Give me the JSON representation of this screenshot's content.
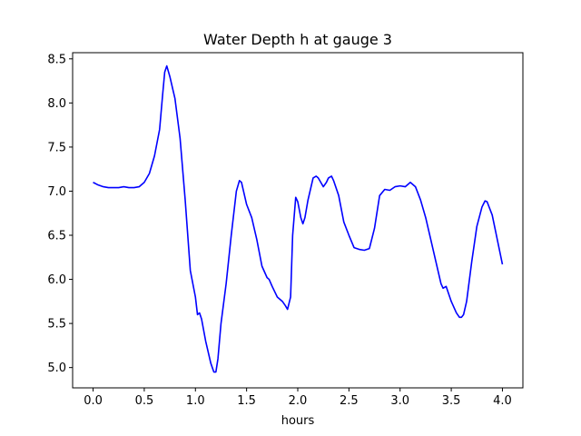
{
  "chart_data": {
    "type": "line",
    "title": "Water Depth h at gauge 3",
    "xlabel": "hours",
    "ylabel": "",
    "xlim": [
      -0.2,
      4.2
    ],
    "ylim": [
      4.77,
      8.57
    ],
    "xticks": [
      0.0,
      0.5,
      1.0,
      1.5,
      2.0,
      2.5,
      3.0,
      3.5,
      4.0
    ],
    "xtick_labels": [
      "0.0",
      "0.5",
      "1.0",
      "1.5",
      "2.0",
      "2.5",
      "3.0",
      "3.5",
      "4.0"
    ],
    "yticks": [
      5.0,
      5.5,
      6.0,
      6.5,
      7.0,
      7.5,
      8.0,
      8.5
    ],
    "ytick_labels": [
      "5.0",
      "5.5",
      "6.0",
      "6.5",
      "7.0",
      "7.5",
      "8.0",
      "8.5"
    ],
    "grid": false,
    "series": [
      {
        "color": "#0000ff",
        "x": [
          0.0,
          0.05,
          0.1,
          0.15,
          0.2,
          0.25,
          0.3,
          0.35,
          0.4,
          0.45,
          0.5,
          0.55,
          0.6,
          0.65,
          0.68,
          0.7,
          0.72,
          0.75,
          0.78,
          0.8,
          0.85,
          0.9,
          0.95,
          1.0,
          1.02,
          1.04,
          1.06,
          1.1,
          1.15,
          1.18,
          1.2,
          1.22,
          1.25,
          1.3,
          1.35,
          1.4,
          1.43,
          1.45,
          1.5,
          1.55,
          1.6,
          1.65,
          1.7,
          1.72,
          1.75,
          1.8,
          1.85,
          1.88,
          1.9,
          1.93,
          1.95,
          1.98,
          2.0,
          2.03,
          2.05,
          2.07,
          2.1,
          2.15,
          2.18,
          2.2,
          2.25,
          2.28,
          2.3,
          2.33,
          2.35,
          2.4,
          2.45,
          2.5,
          2.55,
          2.6,
          2.65,
          2.7,
          2.75,
          2.8,
          2.85,
          2.9,
          2.95,
          3.0,
          3.05,
          3.1,
          3.15,
          3.2,
          3.25,
          3.3,
          3.35,
          3.4,
          3.42,
          3.45,
          3.5,
          3.55,
          3.58,
          3.6,
          3.62,
          3.65,
          3.7,
          3.75,
          3.8,
          3.83,
          3.85,
          3.9,
          3.95,
          4.0
        ],
        "values": [
          7.1,
          7.07,
          7.05,
          7.04,
          7.04,
          7.04,
          7.05,
          7.04,
          7.04,
          7.05,
          7.1,
          7.2,
          7.4,
          7.7,
          8.1,
          8.35,
          8.42,
          8.3,
          8.15,
          8.05,
          7.6,
          6.9,
          6.1,
          5.8,
          5.6,
          5.62,
          5.55,
          5.3,
          5.05,
          4.95,
          4.95,
          5.1,
          5.5,
          5.95,
          6.5,
          7.0,
          7.12,
          7.1,
          6.85,
          6.7,
          6.45,
          6.15,
          6.02,
          6.0,
          5.92,
          5.8,
          5.75,
          5.7,
          5.66,
          5.8,
          6.5,
          6.93,
          6.88,
          6.7,
          6.63,
          6.7,
          6.9,
          7.15,
          7.17,
          7.15,
          7.05,
          7.1,
          7.15,
          7.17,
          7.12,
          6.95,
          6.65,
          6.5,
          6.36,
          6.34,
          6.33,
          6.35,
          6.58,
          6.95,
          7.02,
          7.01,
          7.05,
          7.06,
          7.05,
          7.1,
          7.05,
          6.9,
          6.7,
          6.45,
          6.2,
          5.95,
          5.9,
          5.92,
          5.75,
          5.62,
          5.57,
          5.57,
          5.6,
          5.75,
          6.2,
          6.6,
          6.82,
          6.89,
          6.88,
          6.73,
          6.45,
          6.17
        ]
      }
    ]
  }
}
